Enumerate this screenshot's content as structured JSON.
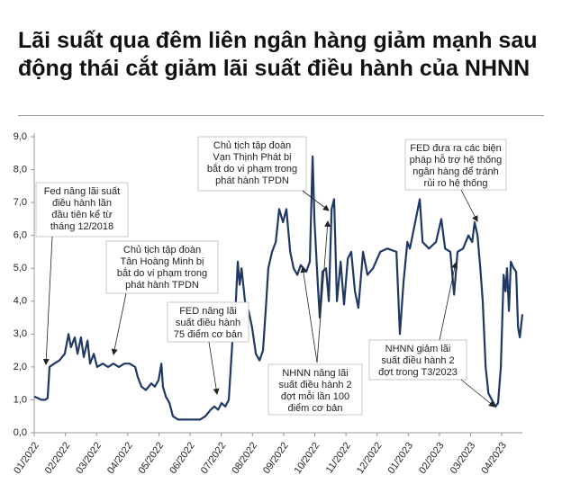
{
  "chart_data": {
    "type": "line",
    "title": "Lãi suất qua đêm liên ngân hàng giảm mạnh sau động thái cắt giảm lãi suất điều hành của NHNN",
    "xlim": [
      0,
      15.66
    ],
    "xticks": [
      {
        "value": 0,
        "label": "01/2022"
      },
      {
        "value": 1,
        "label": "02/2022"
      },
      {
        "value": 2,
        "label": "03/2022"
      },
      {
        "value": 3,
        "label": "04/2022"
      },
      {
        "value": 4,
        "label": "05/2022"
      },
      {
        "value": 5,
        "label": "06/2022"
      },
      {
        "value": 6,
        "label": "07/2022"
      },
      {
        "value": 7,
        "label": "08/2022"
      },
      {
        "value": 8,
        "label": "09/2022"
      },
      {
        "value": 9,
        "label": "10/2022"
      },
      {
        "value": 10,
        "label": "11/2022"
      },
      {
        "value": 11,
        "label": "12/2022"
      },
      {
        "value": 12,
        "label": "01/2023"
      },
      {
        "value": 13,
        "label": "02/2023"
      },
      {
        "value": 14,
        "label": "03/2023"
      },
      {
        "value": 15,
        "label": "04/2023"
      }
    ],
    "ylim": [
      0,
      9
    ],
    "yticks": [
      {
        "value": 0,
        "label": "0,0"
      },
      {
        "value": 1,
        "label": "1,0"
      },
      {
        "value": 2,
        "label": "2,0"
      },
      {
        "value": 3,
        "label": "3,0"
      },
      {
        "value": 4,
        "label": "4,0"
      },
      {
        "value": 5,
        "label": "5,0"
      },
      {
        "value": 6,
        "label": "6,0"
      },
      {
        "value": 7,
        "label": "7,0"
      },
      {
        "value": 8,
        "label": "8,0"
      },
      {
        "value": 9,
        "label": "9,0"
      }
    ],
    "color": "#1f3864",
    "x": [
      0,
      0.12,
      0.23,
      0.35,
      0.43,
      0.49,
      0.64,
      0.81,
      0.98,
      1.1,
      1.18,
      1.3,
      1.39,
      1.5,
      1.59,
      1.71,
      1.79,
      1.91,
      2.02,
      2.2,
      2.37,
      2.54,
      2.72,
      2.89,
      3.06,
      3.24,
      3.32,
      3.44,
      3.58,
      3.76,
      3.87,
      3.99,
      4.08,
      4.13,
      4.22,
      4.34,
      4.45,
      4.62,
      4.86,
      5.09,
      5.32,
      5.49,
      5.66,
      5.78,
      5.9,
      6.01,
      6.13,
      6.24,
      6.36,
      6.45,
      6.53,
      6.59,
      6.65,
      6.76,
      6.88,
      6.99,
      7.11,
      7.23,
      7.34,
      7.43,
      7.51,
      7.63,
      7.75,
      7.86,
      7.98,
      8.09,
      8.21,
      8.32,
      8.44,
      8.55,
      8.73,
      8.84,
      8.93,
      8.99,
      9.08,
      9.16,
      9.25,
      9.36,
      9.45,
      9.54,
      9.62,
      9.71,
      9.83,
      9.94,
      10.06,
      10.17,
      10.29,
      10.4,
      10.55,
      10.69,
      10.87,
      11.1,
      11.33,
      11.62,
      11.73,
      11.85,
      11.97,
      12.05,
      12.37,
      12.46,
      12.66,
      12.89,
      13.06,
      13.18,
      13.35,
      13.47,
      13.58,
      13.76,
      13.93,
      14.05,
      14.13,
      14.22,
      14.31,
      14.39,
      14.48,
      14.57,
      14.68,
      14.8,
      14.88,
      14.97,
      15.06,
      15.12,
      15.17,
      15.23,
      15.29,
      15.38,
      15.46,
      15.52,
      15.58,
      15.66
    ],
    "values": [
      1.1,
      1.05,
      1.0,
      1.0,
      1.05,
      2.0,
      2.1,
      2.2,
      2.4,
      3.0,
      2.6,
      2.9,
      2.4,
      2.9,
      2.3,
      2.8,
      2.1,
      2.4,
      2.0,
      2.1,
      2.0,
      2.1,
      2.0,
      2.1,
      2.1,
      2.0,
      1.7,
      1.4,
      1.3,
      1.5,
      1.4,
      1.6,
      2.1,
      1.4,
      1.1,
      0.9,
      0.5,
      0.4,
      0.4,
      0.4,
      0.4,
      0.5,
      0.7,
      0.8,
      0.7,
      0.9,
      0.8,
      1.0,
      2.8,
      3.6,
      5.2,
      4.5,
      5.0,
      4.0,
      3.7,
      3.2,
      2.4,
      2.2,
      2.5,
      3.8,
      5.0,
      5.5,
      5.8,
      6.8,
      6.4,
      6.8,
      5.5,
      5.0,
      4.8,
      5.1,
      4.9,
      5.2,
      8.4,
      6.5,
      4.8,
      3.5,
      4.9,
      5.0,
      4.0,
      6.8,
      7.1,
      4.0,
      5.2,
      3.9,
      5.3,
      5.5,
      4.3,
      3.8,
      5.5,
      4.8,
      5.0,
      5.5,
      5.6,
      5.5,
      3.0,
      4.6,
      5.8,
      5.6,
      7.1,
      5.8,
      5.6,
      5.8,
      6.5,
      5.6,
      5.5,
      4.2,
      5.5,
      5.6,
      6.0,
      5.8,
      6.4,
      6.0,
      5.0,
      4.0,
      2.0,
      1.2,
      1.0,
      0.8,
      0.9,
      2.0,
      4.8,
      4.3,
      5.0,
      3.7,
      5.2,
      5.0,
      4.9,
      3.2,
      2.9,
      3.6
    ],
    "annotations": [
      [
        "Fed nâng lãi suất",
        "điều hành lần",
        "đầu tiên kể từ",
        "tháng 12/2018"
      ],
      [
        "Chủ tịch tập đoàn",
        "Tân Hoàng Minh bị",
        "bắt do vi phạm trong",
        "phát hành TPDN"
      ],
      [
        "FED nâng lãi",
        "suất điều hành",
        "75 điểm cơ bản"
      ],
      [
        "Chủ tịch tập đoàn",
        "Vạn Thịnh Phát bị",
        "bắt do vi phạm trong",
        "phát hành TPDN"
      ],
      [
        "NHNN nâng lãi",
        "suất điều hành 2",
        "đợt mỗi lần 100",
        "điểm cơ bản"
      ],
      [
        "FED đưa ra các biện",
        "pháp hỗ trợ hệ thống",
        "ngân hàng để tránh",
        "rủi ro hệ thống"
      ],
      [
        "NHNN giảm lãi",
        "suất điều hành 2",
        "đợt trong T3/2023"
      ]
    ]
  }
}
